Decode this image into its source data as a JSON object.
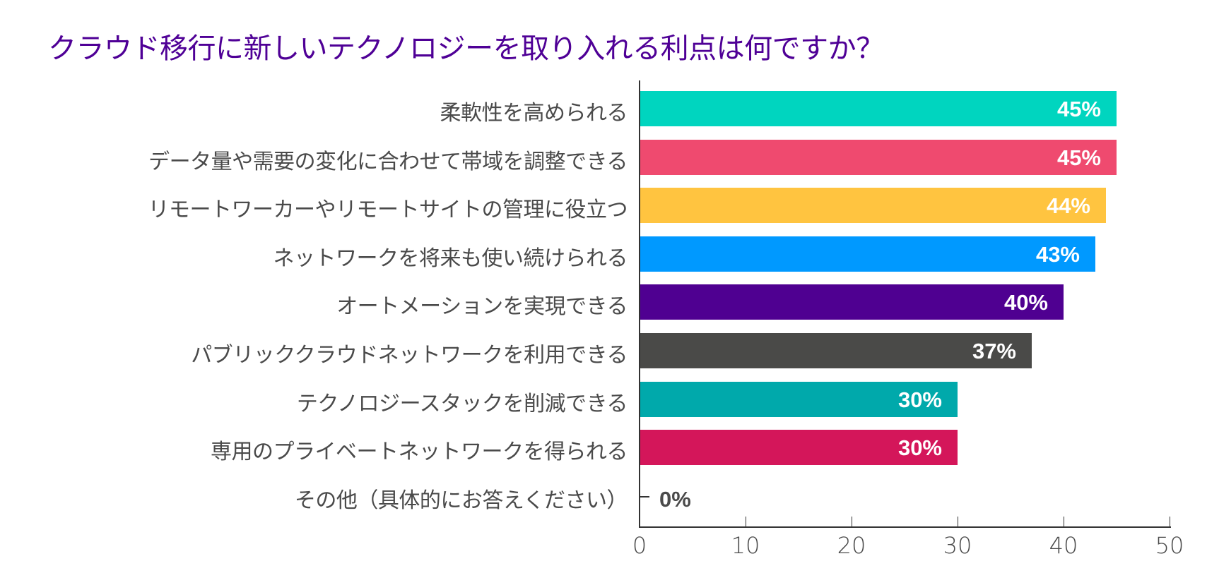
{
  "chart_data": {
    "type": "bar",
    "orientation": "horizontal",
    "title": "クラウド移行に新しいテクノロジーを取り入れる利点は何ですか？",
    "xlabel": "",
    "ylabel": "",
    "xlim": [
      0,
      50
    ],
    "x_ticks": [
      0,
      10,
      20,
      30,
      40,
      50
    ],
    "grid": false,
    "legend": null,
    "categories": [
      "柔軟性を高められる",
      "データ量や需要の変化に合わせて帯域を調整できる",
      "リモートワーカーやリモートサイトの管理に役立つ",
      "ネットワークを将来も使い続けられる",
      "オートメーションを実現できる",
      "パブリッククラウドネットワークを利用できる",
      "テクノロジースタックを削減できる",
      "専用のプライベートネットワークを得られる",
      "その他（具体的にお答えください）"
    ],
    "values": [
      45,
      45,
      44,
      43,
      40,
      37,
      30,
      30,
      0
    ],
    "value_labels": [
      "45%",
      "45%",
      "44%",
      "43%",
      "40%",
      "37%",
      "30%",
      "30%",
      "0%"
    ],
    "colors": [
      "#00d5bf",
      "#ef4a6f",
      "#ffc440",
      "#0099ff",
      "#4f0091",
      "#4a4a48",
      "#00a9ab",
      "#d4165a",
      "#4a4a4a"
    ]
  },
  "tick_labels": [
    "0",
    "10",
    "20",
    "30",
    "40",
    "50"
  ]
}
